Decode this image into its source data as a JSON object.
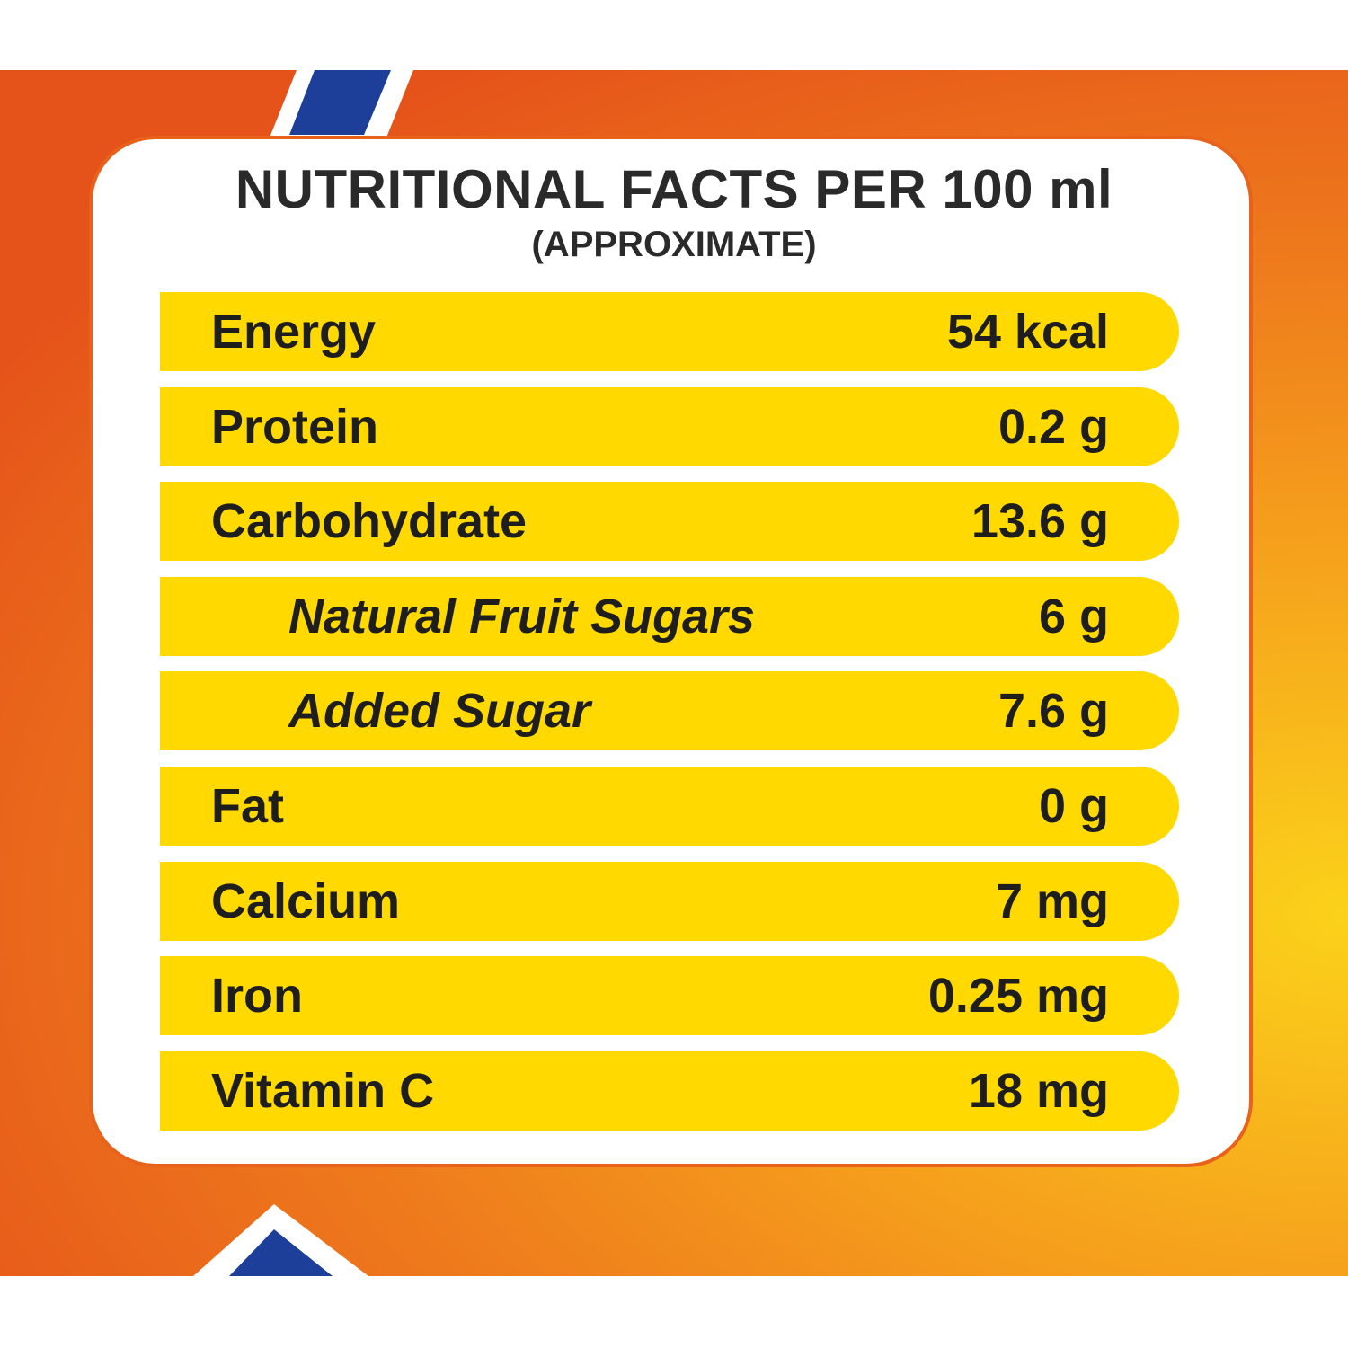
{
  "header": {
    "title": "NUTRITIONAL FACTS PER 100 ml",
    "subtitle": "(APPROXIMATE)"
  },
  "table": {
    "rows": [
      [
        "Energy",
        "54 kcal"
      ],
      [
        "Protein",
        "0.2 g"
      ],
      [
        "Carbohydrate",
        "13.6 g"
      ],
      [
        "Natural Fruit Sugars",
        "6 g"
      ],
      [
        "Added Sugar",
        "7.6 g"
      ],
      [
        "Fat",
        "0 g"
      ],
      [
        "Calcium",
        "7 mg"
      ],
      [
        "Iron",
        "0.25 mg"
      ],
      [
        "Vitamin C",
        "18 mg"
      ]
    ],
    "indented": [
      3,
      4
    ]
  }
}
